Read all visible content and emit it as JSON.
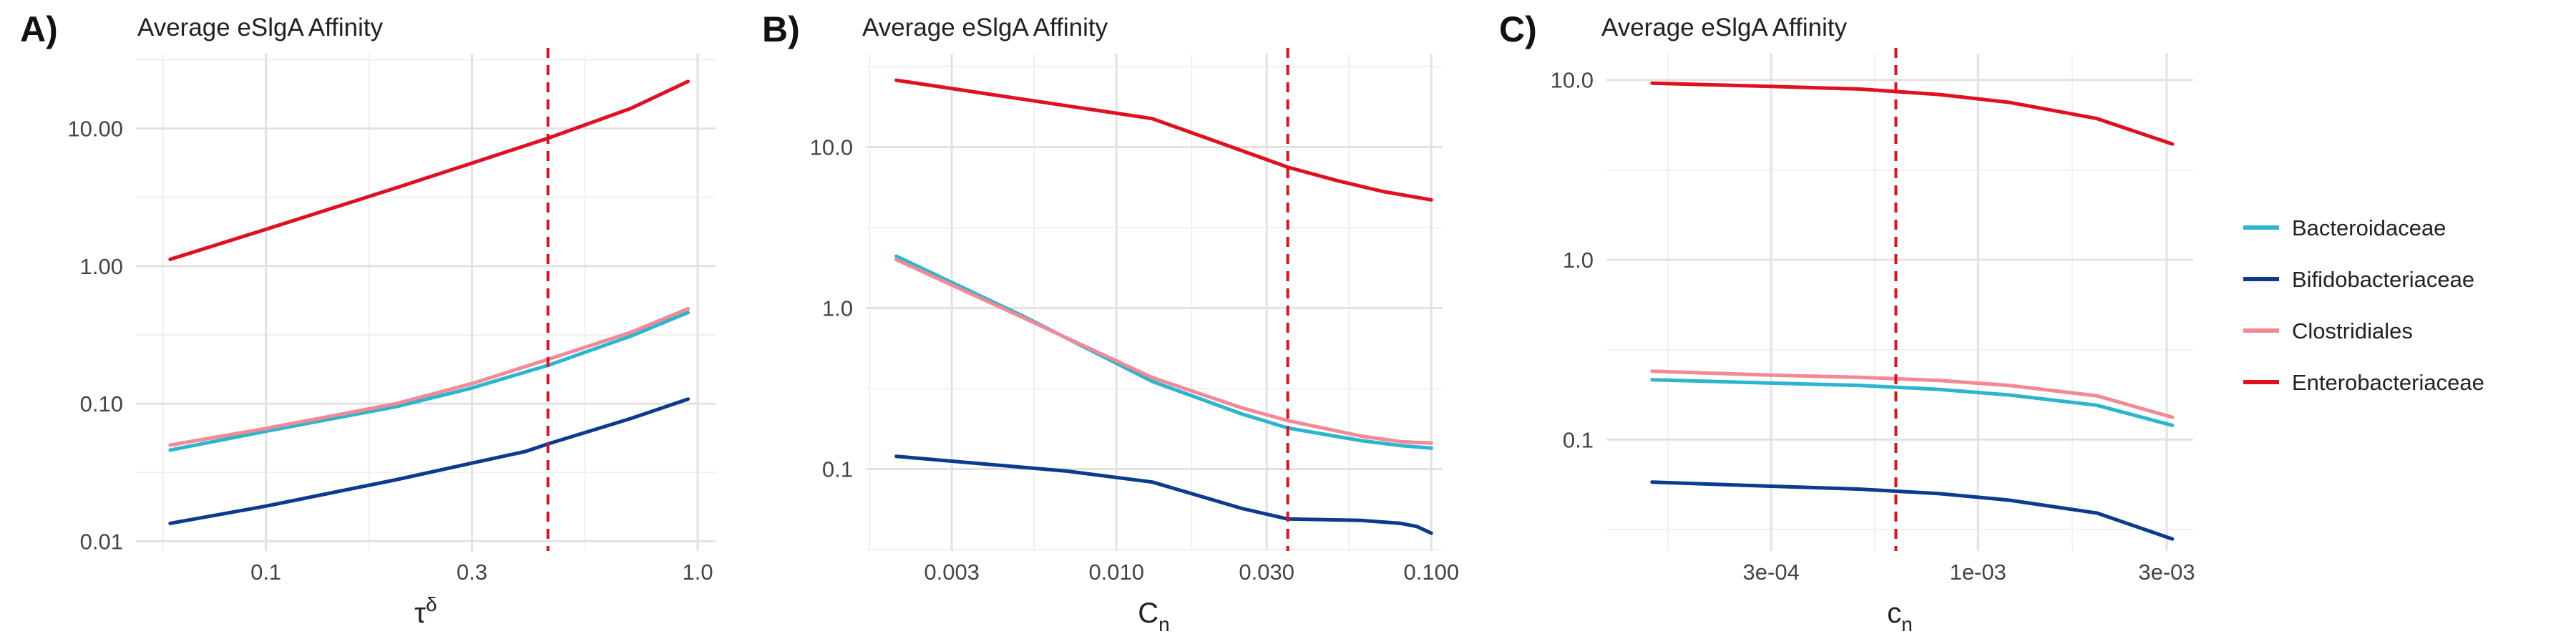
{
  "figure": {
    "legend": {
      "position": "right",
      "items": [
        {
          "label": "Bacteroidaceae",
          "color": "#2bb5cf"
        },
        {
          "label": "Bifidobacteriaceae",
          "color": "#0b3a8f"
        },
        {
          "label": "Clostridiales",
          "color": "#f28a96"
        },
        {
          "label": "Enterobacteriaceae",
          "color": "#e0101f"
        }
      ]
    }
  },
  "chart_data": [
    {
      "type": "line",
      "panel_label": "A)",
      "title": "Average eSlgA Affinity",
      "xlabel": "τ",
      "xlabel_superscript": "δ",
      "ylabel": "",
      "xscale": "log",
      "yscale": "log",
      "xlim": [
        0.05,
        1.1
      ],
      "ylim": [
        0.0085,
        35
      ],
      "xticks": [
        0.1,
        0.3,
        1.0
      ],
      "xtick_labels": [
        "0.1",
        "0.3",
        "1.0"
      ],
      "yticks": [
        0.01,
        0.1,
        1,
        10
      ],
      "ytick_labels": [
        "0.01",
        "0.10",
        "1.00",
        "10.00"
      ],
      "vline": 0.45,
      "vline_color": "#e0101f",
      "grid": true,
      "series": [
        {
          "name": "Bacteroidaceae",
          "color": "#2bb5cf",
          "x": [
            0.06,
            0.1,
            0.2,
            0.3,
            0.45,
            0.7,
            0.95
          ],
          "y": [
            0.046,
            0.063,
            0.095,
            0.13,
            0.19,
            0.31,
            0.46
          ]
        },
        {
          "name": "Bifidobacteriaceae",
          "color": "#0b3a8f",
          "x": [
            0.06,
            0.1,
            0.2,
            0.3,
            0.4,
            0.45,
            0.7,
            0.95
          ],
          "y": [
            0.0135,
            0.018,
            0.028,
            0.037,
            0.045,
            0.051,
            0.078,
            0.108
          ]
        },
        {
          "name": "Clostridiales",
          "color": "#f28a96",
          "x": [
            0.06,
            0.1,
            0.2,
            0.3,
            0.45,
            0.7,
            0.95
          ],
          "y": [
            0.05,
            0.066,
            0.1,
            0.14,
            0.21,
            0.33,
            0.49
          ]
        },
        {
          "name": "Enterobacteriaceae",
          "color": "#e0101f",
          "x": [
            0.06,
            0.1,
            0.2,
            0.3,
            0.45,
            0.7,
            0.95
          ],
          "y": [
            1.12,
            1.85,
            3.7,
            5.6,
            8.5,
            14.0,
            22.0
          ]
        }
      ]
    },
    {
      "type": "line",
      "panel_label": "B)",
      "title": "Average eSlgA Affinity",
      "xlabel": "C",
      "xlabel_subscript": "n",
      "ylabel": "",
      "xscale": "log",
      "yscale": "log",
      "xlim": [
        0.0016,
        0.108
      ],
      "ylim": [
        0.031,
        38
      ],
      "xticks": [
        0.003,
        0.01,
        0.03,
        0.1
      ],
      "xtick_labels": [
        "0.003",
        "0.010",
        "0.030",
        "0.100"
      ],
      "yticks": [
        0.1,
        1,
        10
      ],
      "ytick_labels": [
        "0.1",
        "1.0",
        "10.0"
      ],
      "vline": 0.035,
      "vline_color": "#e0101f",
      "grid": true,
      "series": [
        {
          "name": "Bacteroidaceae",
          "color": "#2bb5cf",
          "x": [
            0.002,
            0.005,
            0.013,
            0.025,
            0.035,
            0.06,
            0.08,
            0.1
          ],
          "y": [
            2.1,
            0.9,
            0.35,
            0.22,
            0.18,
            0.15,
            0.14,
            0.135
          ]
        },
        {
          "name": "Bifidobacteriaceae",
          "color": "#0b3a8f",
          "x": [
            0.002,
            0.007,
            0.013,
            0.025,
            0.035,
            0.06,
            0.08,
            0.09,
            0.1
          ],
          "y": [
            0.12,
            0.097,
            0.083,
            0.057,
            0.049,
            0.048,
            0.046,
            0.044,
            0.04
          ]
        },
        {
          "name": "Clostridiales",
          "color": "#f28a96",
          "x": [
            0.002,
            0.005,
            0.013,
            0.025,
            0.035,
            0.06,
            0.08,
            0.1
          ],
          "y": [
            2.0,
            0.88,
            0.37,
            0.24,
            0.2,
            0.16,
            0.148,
            0.145
          ]
        },
        {
          "name": "Enterobacteriaceae",
          "color": "#e0101f",
          "x": [
            0.002,
            0.013,
            0.025,
            0.035,
            0.05,
            0.07,
            0.1
          ],
          "y": [
            26.0,
            15.0,
            9.5,
            7.5,
            6.2,
            5.3,
            4.7
          ]
        }
      ]
    },
    {
      "type": "line",
      "panel_label": "C)",
      "title": "Average eSlgA Affinity",
      "xlabel": "c",
      "xlabel_subscript": "n",
      "ylabel": "",
      "xscale": "log",
      "yscale": "log",
      "xlim": [
        0.000115,
        0.0035
      ],
      "ylim": [
        0.024,
        14
      ],
      "xticks": [
        0.0003,
        0.001,
        0.003
      ],
      "xtick_labels": [
        "3e-04",
        "1e-03",
        "3e-03"
      ],
      "yticks": [
        0.1,
        1,
        10
      ],
      "ytick_labels": [
        "0.1",
        "1.0",
        "10.0"
      ],
      "vline": 0.00062,
      "vline_color": "#e0101f",
      "grid": true,
      "series": [
        {
          "name": "Bacteroidaceae",
          "color": "#2bb5cf",
          "x": [
            0.00015,
            0.0003,
            0.0005,
            0.0008,
            0.0012,
            0.002,
            0.0031
          ],
          "y": [
            0.215,
            0.206,
            0.2,
            0.19,
            0.177,
            0.155,
            0.12
          ]
        },
        {
          "name": "Bifidobacteriaceae",
          "color": "#0b3a8f",
          "x": [
            0.00015,
            0.0003,
            0.0005,
            0.0008,
            0.0012,
            0.002,
            0.0031
          ],
          "y": [
            0.058,
            0.055,
            0.053,
            0.05,
            0.046,
            0.039,
            0.028
          ]
        },
        {
          "name": "Clostridiales",
          "color": "#f28a96",
          "x": [
            0.00015,
            0.0003,
            0.0005,
            0.0008,
            0.0012,
            0.002,
            0.0031
          ],
          "y": [
            0.24,
            0.228,
            0.222,
            0.213,
            0.2,
            0.175,
            0.133
          ]
        },
        {
          "name": "Enterobacteriaceae",
          "color": "#e0101f",
          "x": [
            0.00015,
            0.0003,
            0.0005,
            0.0008,
            0.0012,
            0.002,
            0.0031
          ],
          "y": [
            9.6,
            9.2,
            8.9,
            8.3,
            7.5,
            6.1,
            4.4
          ]
        }
      ]
    }
  ]
}
